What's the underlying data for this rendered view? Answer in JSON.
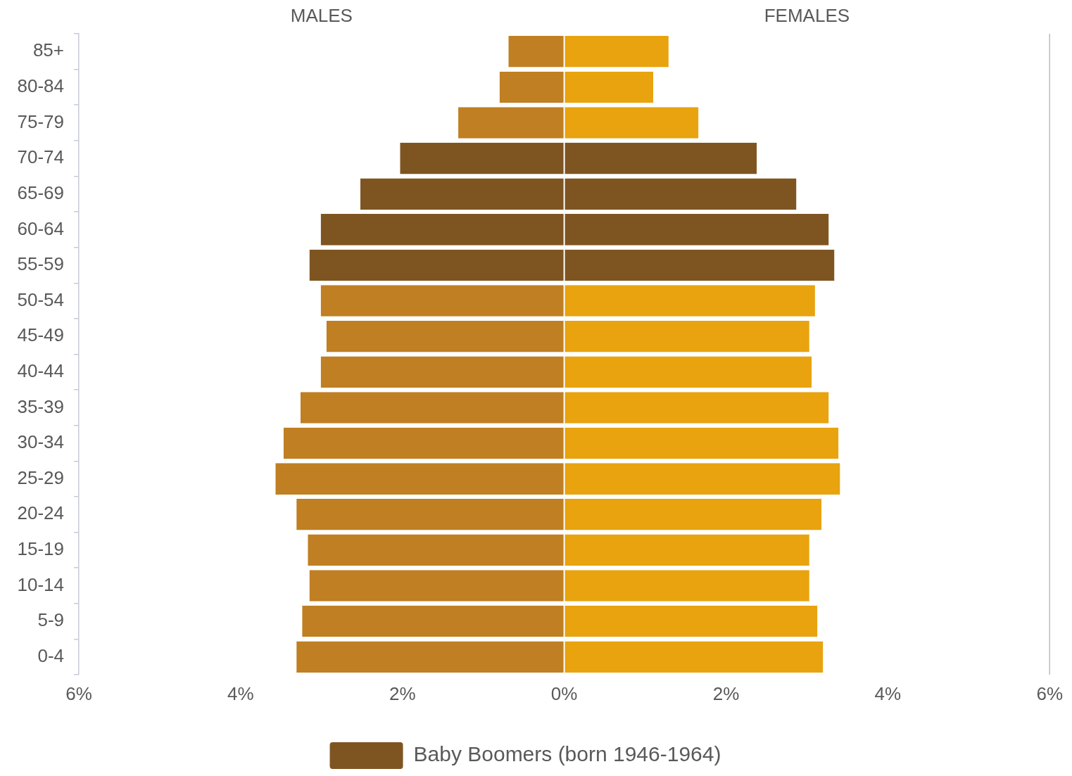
{
  "chart_data": {
    "type": "bar",
    "orientation": "horizontal",
    "stacked": true,
    "grid": false,
    "legend": "bottom",
    "categories": [
      "85+",
      "80-84",
      "75-79",
      "70-74",
      "65-69",
      "60-64",
      "55-59",
      "50-54",
      "45-49",
      "40-44",
      "35-39",
      "30-34",
      "25-29",
      "20-24",
      "15-19",
      "10-14",
      "5-9",
      "0-4"
    ],
    "series": [
      {
        "color": "#bf7f22",
        "values": [
          -0.69,
          -0.8,
          -1.31,
          null,
          null,
          null,
          null,
          -3.01,
          -2.94,
          -3.01,
          -3.26,
          -3.47,
          -3.57,
          -3.31,
          -3.17,
          -3.15,
          -3.24,
          -3.31
        ]
      },
      {
        "name": "Baby Boomers (born 1946-1964)",
        "color": "#7e5521",
        "values": [
          null,
          null,
          null,
          -2.03,
          -2.52,
          -3.01,
          -3.15,
          null,
          null,
          null,
          null,
          null,
          null,
          null,
          null,
          null,
          null,
          null
        ]
      },
      {
        "color": "#e8a30e",
        "values": [
          1.29,
          1.1,
          1.66,
          null,
          null,
          null,
          null,
          3.1,
          3.03,
          3.06,
          3.27,
          3.39,
          3.41,
          3.18,
          3.03,
          3.03,
          3.13,
          3.2
        ]
      },
      {
        "color": "#7e5521",
        "values": [
          null,
          null,
          null,
          2.38,
          2.87,
          3.27,
          3.34,
          null,
          null,
          null,
          null,
          null,
          null,
          null,
          null,
          null,
          null,
          null
        ]
      }
    ],
    "xlim": [
      -6,
      6
    ],
    "xticks": [
      {
        "value": -6,
        "label": "6%"
      },
      {
        "value": -4,
        "label": "4%"
      },
      {
        "value": -2,
        "label": "2%"
      },
      {
        "value": 0,
        "label": "0%"
      },
      {
        "value": 2,
        "label": "2%"
      },
      {
        "value": 4,
        "label": "4%"
      },
      {
        "value": 6,
        "label": "6%"
      }
    ],
    "annotations": [
      "MALES",
      "FEMALES"
    ]
  }
}
